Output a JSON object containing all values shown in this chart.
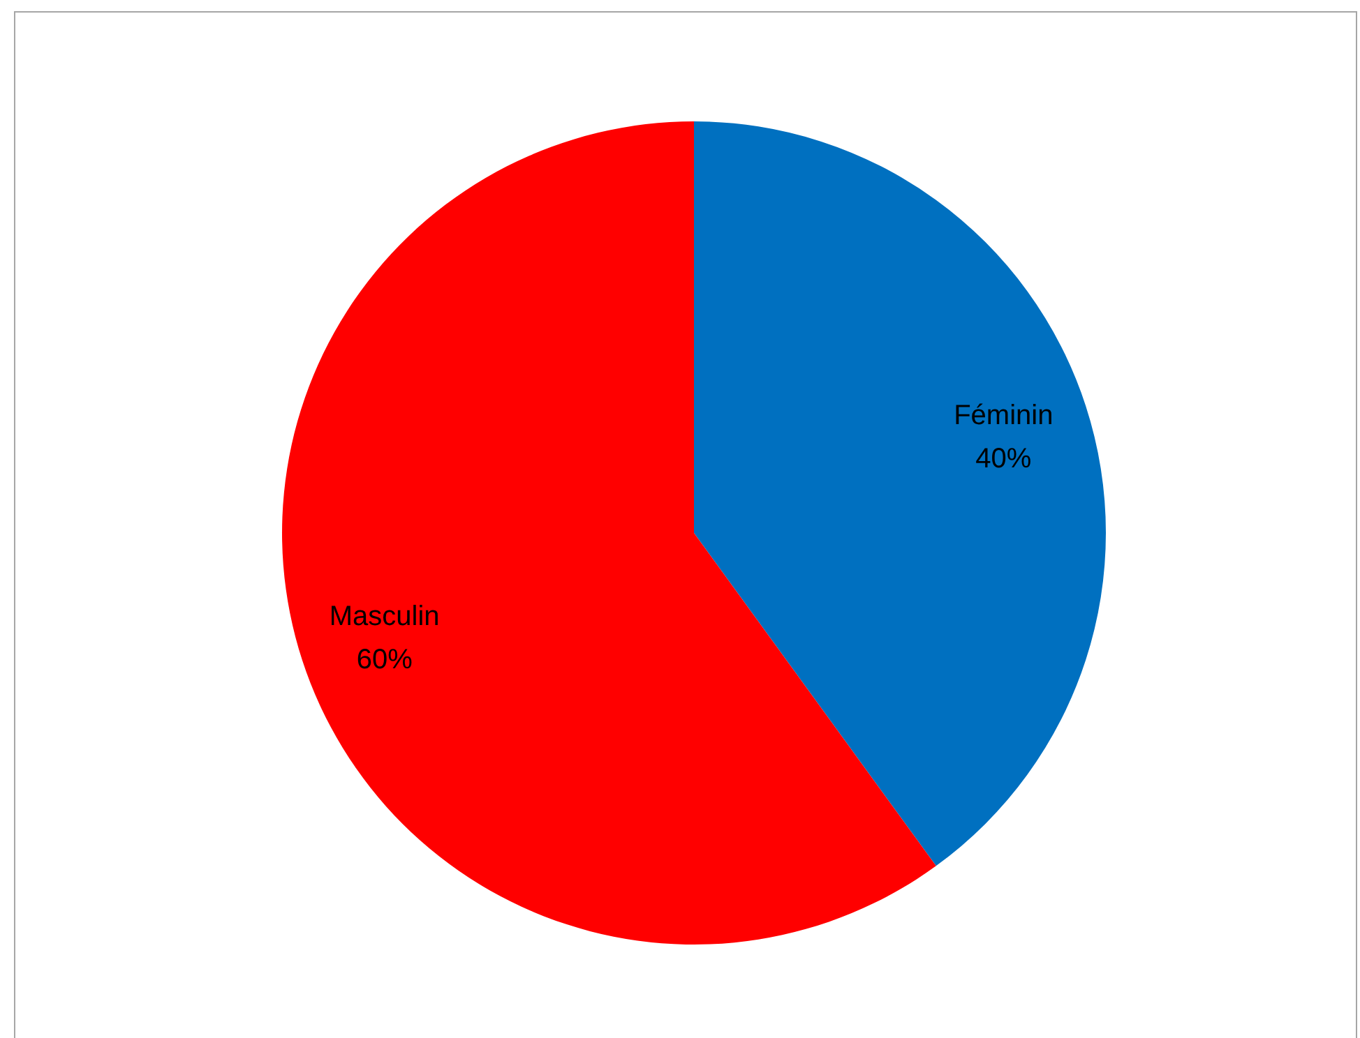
{
  "chart_data": {
    "type": "pie",
    "categories": [
      "Féminin",
      "Masculin"
    ],
    "values": [
      40,
      60
    ],
    "colors": [
      "#0070c0",
      "#ff0000"
    ],
    "value_labels": [
      "40%",
      "60%"
    ],
    "legend": false
  }
}
